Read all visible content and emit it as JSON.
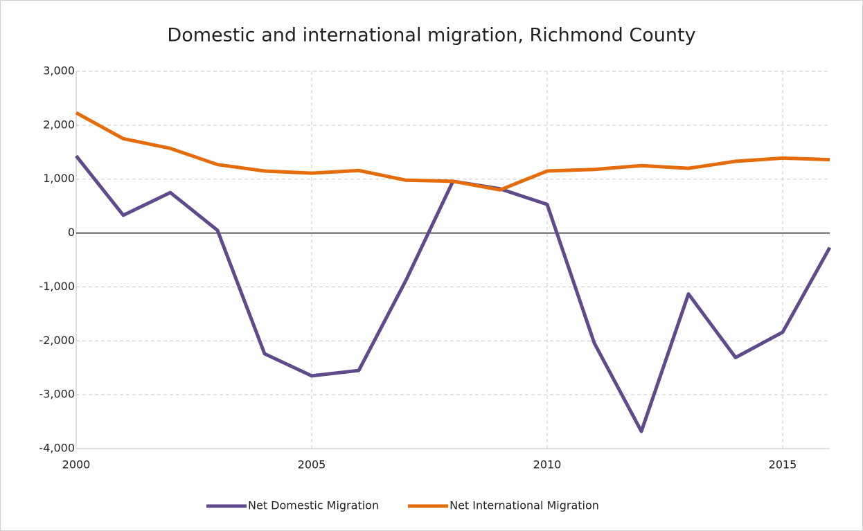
{
  "chart_data": {
    "type": "line",
    "title": "Domestic and international migration, Richmond County",
    "x": [
      2000,
      2001,
      2002,
      2003,
      2004,
      2005,
      2006,
      2007,
      2008,
      2009,
      2010,
      2011,
      2012,
      2013,
      2014,
      2015,
      2016
    ],
    "series": [
      {
        "name": "Net Domestic Migration",
        "color": "#5f4b8b",
        "values": [
          1430,
          330,
          750,
          50,
          -2240,
          -2650,
          -2550,
          -880,
          960,
          820,
          530,
          -2040,
          -3680,
          -1130,
          -2310,
          -1840,
          -270
        ]
      },
      {
        "name": "Net International Migration",
        "color": "#e46c0a",
        "values": [
          2230,
          1750,
          1570,
          1270,
          1150,
          1110,
          1160,
          980,
          960,
          800,
          1150,
          1180,
          1250,
          1200,
          1330,
          1390,
          1360
        ]
      }
    ],
    "xlim": [
      2000,
      2016
    ],
    "xticks": [
      2000,
      2005,
      2010,
      2015
    ],
    "ylim": [
      -4000,
      3000
    ],
    "yticks": [
      {
        "value": -4000,
        "label": "-4,000"
      },
      {
        "value": -3000,
        "label": "-3,000"
      },
      {
        "value": -2000,
        "label": "-2,000"
      },
      {
        "value": -1000,
        "label": "-1,000"
      },
      0,
      {
        "value": 1000,
        "label": "1,000"
      },
      {
        "value": 2000,
        "label": "2,000"
      },
      {
        "value": 3000,
        "label": "3,000"
      }
    ],
    "grid": true,
    "legend": "bottom"
  }
}
